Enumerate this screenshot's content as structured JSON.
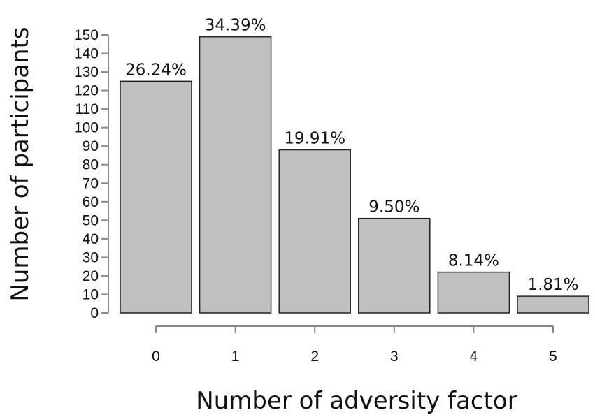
{
  "chart_data": {
    "type": "bar",
    "categories": [
      "0",
      "1",
      "2",
      "3",
      "4",
      "5"
    ],
    "values": [
      125,
      149,
      88,
      51,
      22,
      9
    ],
    "data_labels": [
      "26.24%",
      "34.39%",
      "19.91%",
      "9.50%",
      "8.14%",
      "1.81%"
    ],
    "xlabel": "Number of adversity factor",
    "ylabel": "Number of participants",
    "ylim": [
      0,
      150
    ],
    "yticks": [
      0,
      10,
      20,
      30,
      40,
      50,
      60,
      70,
      80,
      90,
      100,
      110,
      120,
      130,
      140,
      150
    ],
    "bar_color": "#c0c0c0",
    "grid": false
  }
}
